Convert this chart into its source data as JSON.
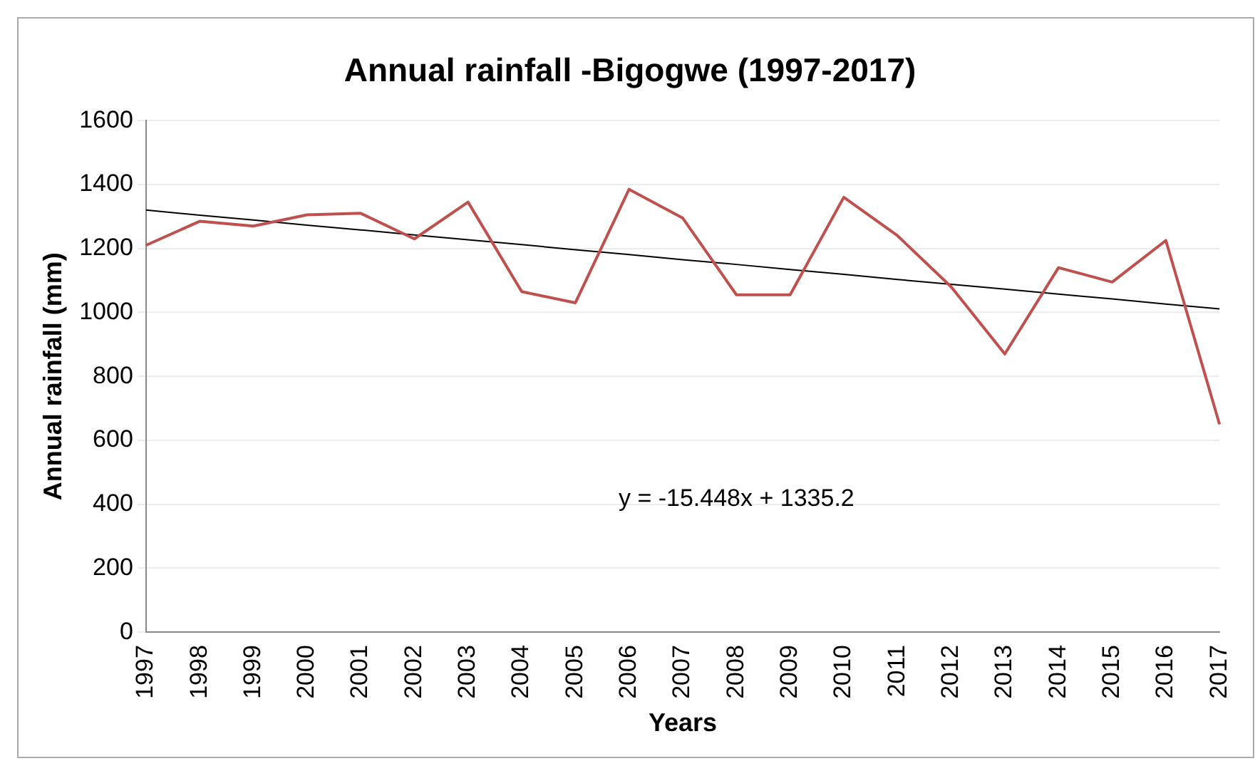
{
  "chart_data": {
    "type": "line",
    "title": "Annual rainfall -Bigogwe (1997-2017)",
    "xlabel": "Years",
    "ylabel": "Annual rainfall (mm)",
    "categories": [
      "1997",
      "1998",
      "1999",
      "2000",
      "2001",
      "2002",
      "2003",
      "2004",
      "2005",
      "2006",
      "2007",
      "2008",
      "2009",
      "2010",
      "2011",
      "2012",
      "2013",
      "2014",
      "2015",
      "2016",
      "2017"
    ],
    "series": [
      {
        "color": "#c0504d",
        "values": [
          1210,
          1285,
          1270,
          1305,
          1310,
          1230,
          1345,
          1065,
          1030,
          1385,
          1295,
          1055,
          1055,
          1360,
          1240,
          1080,
          870,
          1140,
          1095,
          1225,
          650
        ]
      },
      {
        "type": "line",
        "color": "#000000",
        "values": [
          1320,
          1304,
          1289,
          1273,
          1258,
          1242,
          1227,
          1212,
          1196,
          1181,
          1165,
          1150,
          1134,
          1119,
          1103,
          1088,
          1073,
          1057,
          1042,
          1026,
          1011
        ]
      }
    ],
    "annotations": [
      "y = -15.448x + 1335.2"
    ],
    "ylim": [
      0,
      1600
    ],
    "yticks": [
      0,
      200,
      400,
      600,
      800,
      1000,
      1200,
      1400,
      1600
    ],
    "grid": "y",
    "marker": "none",
    "legend": false
  }
}
